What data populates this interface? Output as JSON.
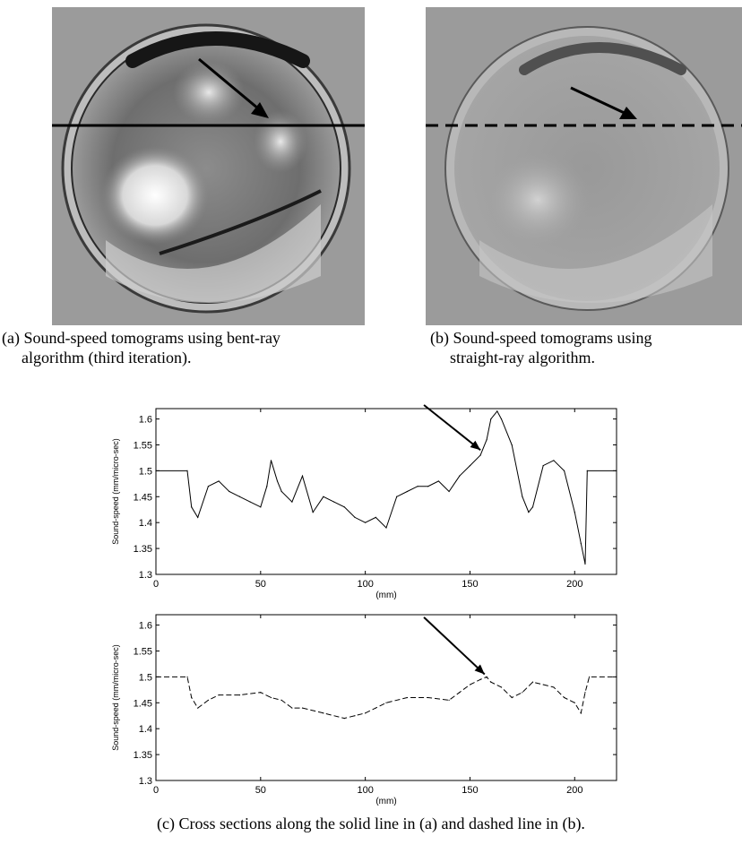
{
  "figure": {
    "panel_a_caption": [
      "(a) Sound-speed tomograms using bent-ray",
      "algorithm (third iteration)."
    ],
    "panel_b_caption": [
      "(b) Sound-speed tomograms using",
      "straight-ray algorithm."
    ],
    "panel_c_caption": "(c) Cross sections along the solid line in (a) and dashed line in (b).",
    "image_a_description": "bent-ray tomogram",
    "image_b_description": "straight-ray tomogram",
    "line_a_style": "solid",
    "line_b_style": "dashed"
  },
  "chart_data": [
    {
      "type": "line",
      "title": "",
      "xlabel": "(mm)",
      "ylabel": "Sound-speed (mm/micro-sec)",
      "xlim": [
        0,
        220
      ],
      "ylim": [
        1.3,
        1.62
      ],
      "xticks": [
        "0",
        "50",
        "100",
        "150",
        "200"
      ],
      "yticks": [
        "1.3",
        "1.35",
        "1.4",
        "1.45",
        "1.5",
        "1.55",
        "1.6"
      ],
      "line_style": "solid",
      "annotation": "arrow pointing to peak near x=155",
      "x": [
        0,
        15,
        17,
        20,
        25,
        30,
        35,
        40,
        45,
        50,
        53,
        55,
        58,
        60,
        65,
        70,
        75,
        80,
        85,
        90,
        95,
        100,
        105,
        110,
        115,
        120,
        125,
        130,
        135,
        140,
        145,
        150,
        155,
        158,
        160,
        163,
        165,
        170,
        175,
        178,
        180,
        185,
        190,
        195,
        200,
        203,
        205,
        206,
        220
      ],
      "y": [
        1.5,
        1.5,
        1.43,
        1.41,
        1.47,
        1.48,
        1.46,
        1.45,
        1.44,
        1.43,
        1.47,
        1.52,
        1.48,
        1.46,
        1.44,
        1.49,
        1.42,
        1.45,
        1.44,
        1.43,
        1.41,
        1.4,
        1.41,
        1.39,
        1.45,
        1.46,
        1.47,
        1.47,
        1.48,
        1.46,
        1.49,
        1.51,
        1.53,
        1.56,
        1.6,
        1.615,
        1.6,
        1.55,
        1.45,
        1.42,
        1.43,
        1.51,
        1.52,
        1.5,
        1.42,
        1.36,
        1.32,
        1.5,
        1.5
      ]
    },
    {
      "type": "line",
      "title": "",
      "xlabel": "(mm)",
      "ylabel": "Sound-speed (mm/micro-sec)",
      "xlim": [
        0,
        220
      ],
      "ylim": [
        1.3,
        1.62
      ],
      "xticks": [
        "0",
        "50",
        "100",
        "150",
        "200"
      ],
      "yticks": [
        "1.3",
        "1.35",
        "1.4",
        "1.45",
        "1.5",
        "1.55",
        "1.6"
      ],
      "line_style": "dashed",
      "annotation": "arrow pointing to peak near x=155",
      "x": [
        0,
        15,
        17,
        20,
        25,
        30,
        40,
        50,
        55,
        60,
        65,
        70,
        80,
        90,
        95,
        100,
        105,
        110,
        120,
        130,
        140,
        145,
        150,
        155,
        158,
        160,
        165,
        170,
        175,
        180,
        185,
        190,
        195,
        200,
        203,
        205,
        207,
        220
      ],
      "y": [
        1.5,
        1.5,
        1.46,
        1.44,
        1.455,
        1.465,
        1.465,
        1.47,
        1.46,
        1.455,
        1.44,
        1.44,
        1.43,
        1.42,
        1.425,
        1.43,
        1.44,
        1.45,
        1.46,
        1.46,
        1.455,
        1.47,
        1.485,
        1.495,
        1.5,
        1.49,
        1.48,
        1.46,
        1.47,
        1.49,
        1.485,
        1.48,
        1.46,
        1.45,
        1.43,
        1.47,
        1.5,
        1.5
      ]
    }
  ]
}
